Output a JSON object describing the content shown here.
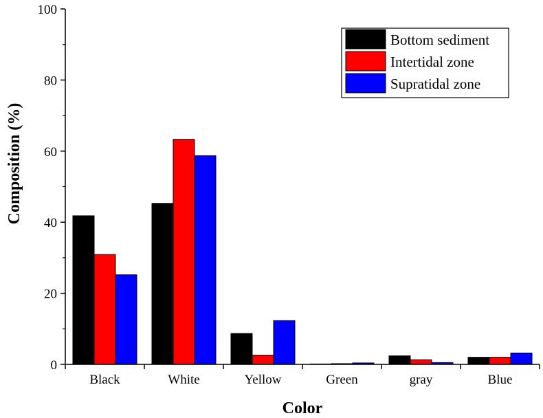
{
  "chart_data": {
    "type": "bar",
    "title": "",
    "xlabel": "Color",
    "ylabel": "Composition (%)",
    "ylim": [
      0,
      100
    ],
    "yticks": [
      "0",
      "20",
      "40",
      "60",
      "80",
      "100"
    ],
    "categories": [
      "Black",
      "White",
      "Yellow",
      "Green",
      "gray",
      "Blue"
    ],
    "series": [
      {
        "name": "Bottom sediment",
        "color": "#000000",
        "values": [
          41.8,
          45.3,
          8.7,
          0.1,
          2.4,
          2.0
        ]
      },
      {
        "name": "Intertidal zone",
        "color": "#ff0000",
        "values": [
          30.9,
          63.3,
          2.6,
          0.2,
          1.3,
          2.0
        ]
      },
      {
        "name": "Supratidal zone",
        "color": "#0000ff",
        "values": [
          25.2,
          58.7,
          12.3,
          0.4,
          0.5,
          3.2
        ]
      }
    ],
    "legend_position": "top-right",
    "grid": false
  }
}
